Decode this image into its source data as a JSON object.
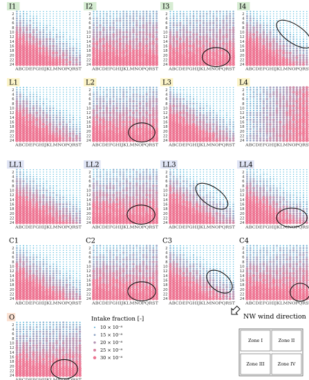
{
  "chart_data": {
    "type": "scatter",
    "description_of_grid": "Bubble matrix per case: columns A-T (20 building columns), rows 1-24",
    "x_categories": [
      "A",
      "B",
      "C",
      "D",
      "E",
      "F",
      "G",
      "H",
      "I",
      "J",
      "K",
      "L",
      "M",
      "N",
      "O",
      "P",
      "Q",
      "R",
      "S",
      "T"
    ],
    "x_tick_text": "ABCDEFGHIJKLMNOPQRST",
    "y_ticks": [
      2,
      4,
      6,
      8,
      10,
      12,
      14,
      16,
      18,
      20,
      22,
      24
    ],
    "panels": [
      {
        "label": "I1",
        "label_bg": "#d6ecd2",
        "pattern": "diag",
        "ellipse": null
      },
      {
        "label": "I2",
        "label_bg": "#d6ecd2",
        "pattern": "bottom",
        "ellipse": null
      },
      {
        "label": "I3",
        "label_bg": "#d6ecd2",
        "pattern": "bottom",
        "ellipse": {
          "cx": 14.8,
          "cy": 20.8,
          "rx": 4.2,
          "ry": 1.6,
          "angle": 0
        }
      },
      {
        "label": "I4",
        "label_bg": "#d6ecd2",
        "pattern": "diag",
        "ellipse": {
          "cx": 15.2,
          "cy": 10.8,
          "rx": 6.2,
          "ry": 1.5,
          "angle": 35
        }
      },
      {
        "label": "L1",
        "label_bg": "#fbf3c7",
        "pattern": "diag",
        "ellipse": null
      },
      {
        "label": "L2",
        "label_bg": "#fbf3c7",
        "pattern": "bottom",
        "ellipse": {
          "cx": 15.5,
          "cy": 20.5,
          "rx": 4.0,
          "ry": 1.6,
          "angle": 0
        }
      },
      {
        "label": "L3",
        "label_bg": "#fbf3c7",
        "pattern": "diag",
        "ellipse": null
      },
      {
        "label": "L4",
        "label_bg": "#fbf3c7",
        "pattern": "right",
        "ellipse": null
      },
      {
        "label": "LL1",
        "label_bg": "#dfe4f5",
        "pattern": "diag",
        "ellipse": null
      },
      {
        "label": "LL2",
        "label_bg": "#dfe4f5",
        "pattern": "bottom",
        "ellipse": {
          "cx": 15.3,
          "cy": 20.5,
          "rx": 4.2,
          "ry": 1.6,
          "angle": 0
        }
      },
      {
        "label": "LL3",
        "label_bg": "#dfe4f5",
        "pattern": "diag",
        "ellipse": {
          "cx": 13.5,
          "cy": 12.5,
          "rx": 5.6,
          "ry": 1.5,
          "angle": 35
        }
      },
      {
        "label": "LL4",
        "label_bg": "#dfe4f5",
        "pattern": "diag",
        "ellipse": {
          "cx": 14.5,
          "cy": 21.8,
          "rx": 4.6,
          "ry": 1.6,
          "angle": 0
        }
      },
      {
        "label": "C1",
        "label_bg": "#ffffff",
        "pattern": "diag",
        "ellipse": null
      },
      {
        "label": "C2",
        "label_bg": "#ffffff",
        "pattern": "bottom",
        "ellipse": {
          "cx": 15.5,
          "cy": 20.8,
          "rx": 4.2,
          "ry": 1.6,
          "angle": 0
        }
      },
      {
        "label": "C3",
        "label_bg": "#ffffff",
        "pattern": "diag",
        "ellipse": {
          "cx": 15.8,
          "cy": 16.6,
          "rx": 4.4,
          "ry": 1.5,
          "angle": 38
        }
      },
      {
        "label": "C4",
        "label_bg": "#ffffff",
        "pattern": "bottom",
        "ellipse": {
          "cx": 17.0,
          "cy": 21.2,
          "rx": 3.0,
          "ry": 1.5,
          "angle": 0
        }
      },
      {
        "label": "O",
        "label_bg": "#fbe1d2",
        "pattern": "bottom",
        "ellipse": {
          "cx": 15.3,
          "cy": 21.3,
          "rx": 4.0,
          "ry": 1.6,
          "angle": 0
        }
      }
    ],
    "legend": {
      "title": "Intake fraction [-]",
      "items": [
        {
          "text": "10 × 10⁻⁸",
          "value": 10
        },
        {
          "text": "15 × 10⁻⁸",
          "value": 15
        },
        {
          "text": "20 × 10⁻⁸",
          "value": 20
        },
        {
          "text": "25 × 10⁻⁸",
          "value": 25
        },
        {
          "text": "30 × 10⁻⁸",
          "value": 30
        }
      ]
    },
    "colors": {
      "low": "#3aaed8",
      "high": "#ea5e80",
      "ellipse": "#111111"
    }
  },
  "wind": {
    "text": "NW wind direction",
    "zones": [
      "Zone I",
      "Zone II",
      "Zone III",
      "Zone IV"
    ]
  }
}
